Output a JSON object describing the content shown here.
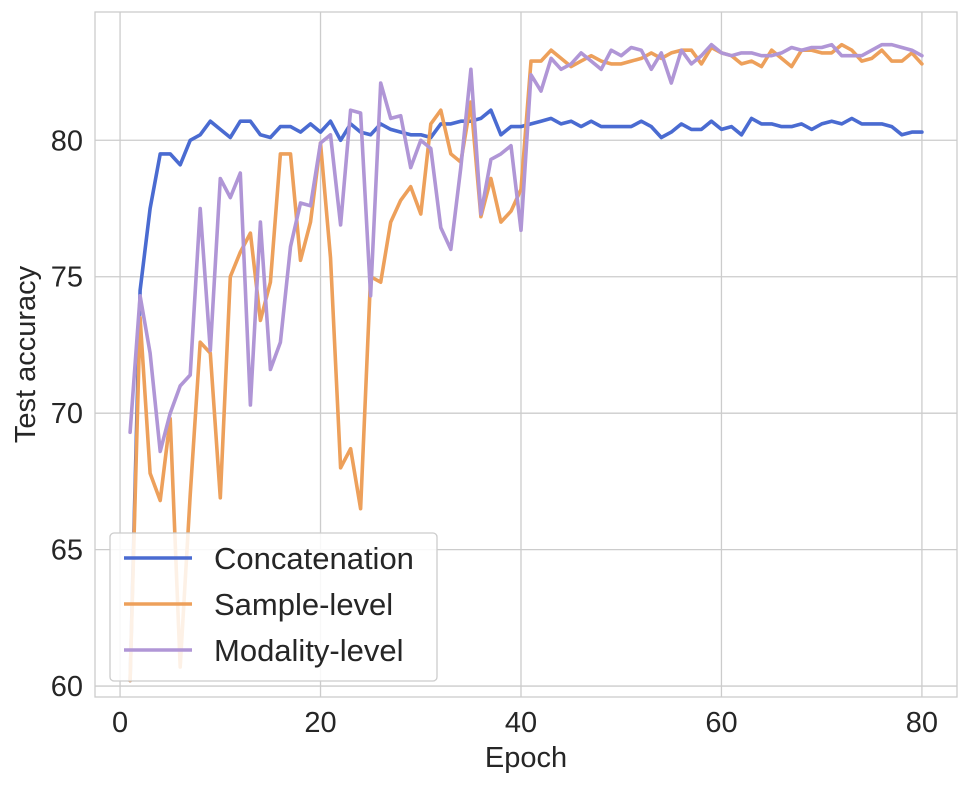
{
  "chart_data": {
    "type": "line",
    "title": "",
    "xlabel": "Epoch",
    "ylabel": "Test accuracy",
    "xlim": [
      -2.5,
      83.5
    ],
    "ylim": [
      59.6,
      84.7
    ],
    "xticks": [
      0,
      20,
      40,
      60,
      80
    ],
    "yticks": [
      60,
      65,
      70,
      75,
      80
    ],
    "xtick_labels": [
      "0",
      "20",
      "40",
      "60",
      "80"
    ],
    "ytick_labels": [
      "60",
      "65",
      "70",
      "75",
      "80"
    ],
    "grid": true,
    "legend_position": "lower-left",
    "x": [
      1,
      2,
      3,
      4,
      5,
      6,
      7,
      8,
      9,
      10,
      11,
      12,
      13,
      14,
      15,
      16,
      17,
      18,
      19,
      20,
      21,
      22,
      23,
      24,
      25,
      26,
      27,
      28,
      29,
      30,
      31,
      32,
      33,
      34,
      35,
      36,
      37,
      38,
      39,
      40,
      41,
      42,
      43,
      44,
      45,
      46,
      47,
      48,
      49,
      50,
      51,
      52,
      53,
      54,
      55,
      56,
      57,
      58,
      59,
      60,
      61,
      62,
      63,
      64,
      65,
      66,
      67,
      68,
      69,
      70,
      71,
      72,
      73,
      74,
      75,
      76,
      77,
      78,
      79,
      80
    ],
    "series": [
      {
        "name": "Concatenation",
        "color": "#4a6bd1",
        "values": [
          60.2,
          74.5,
          77.5,
          79.5,
          79.5,
          79.1,
          80.0,
          80.2,
          80.7,
          80.4,
          80.1,
          80.7,
          80.7,
          80.2,
          80.1,
          80.5,
          80.5,
          80.3,
          80.6,
          80.3,
          80.7,
          80.0,
          80.6,
          80.3,
          80.2,
          80.6,
          80.4,
          80.3,
          80.2,
          80.2,
          80.1,
          80.6,
          80.6,
          80.7,
          80.7,
          80.8,
          81.1,
          80.2,
          80.5,
          80.5,
          80.6,
          80.7,
          80.8,
          80.6,
          80.7,
          80.5,
          80.7,
          80.5,
          80.5,
          80.5,
          80.5,
          80.7,
          80.5,
          80.1,
          80.3,
          80.6,
          80.4,
          80.4,
          80.7,
          80.4,
          80.5,
          80.2,
          80.8,
          80.6,
          80.6,
          80.5,
          80.5,
          80.6,
          80.4,
          80.6,
          80.7,
          80.6,
          80.8,
          80.6,
          80.6,
          80.6,
          80.5,
          80.2,
          80.3,
          80.3
        ]
      },
      {
        "name": "Sample-level",
        "color": "#eda05b",
        "values": [
          60.2,
          73.5,
          67.8,
          66.8,
          69.8,
          60.7,
          67.0,
          72.6,
          72.2,
          66.9,
          75.0,
          75.9,
          76.6,
          73.4,
          74.8,
          79.5,
          79.5,
          75.6,
          77.0,
          79.9,
          75.7,
          68.0,
          68.7,
          66.5,
          75.0,
          74.8,
          77.0,
          77.8,
          78.3,
          77.3,
          80.6,
          81.1,
          79.5,
          79.2,
          81.4,
          77.2,
          78.6,
          77.0,
          77.4,
          78.2,
          82.9,
          82.9,
          83.3,
          83.0,
          82.7,
          82.9,
          83.1,
          82.9,
          82.8,
          82.8,
          82.9,
          83.0,
          83.2,
          83.0,
          83.2,
          83.3,
          83.3,
          82.8,
          83.4,
          83.2,
          83.1,
          82.8,
          82.9,
          82.7,
          83.3,
          83.0,
          82.7,
          83.3,
          83.3,
          83.2,
          83.2,
          83.5,
          83.3,
          82.9,
          83.0,
          83.3,
          82.9,
          82.9,
          83.2,
          82.8
        ]
      },
      {
        "name": "Modality-level",
        "color": "#b096d6",
        "values": [
          69.3,
          74.3,
          72.2,
          68.6,
          70.0,
          71.0,
          71.4,
          77.5,
          72.3,
          78.6,
          77.9,
          78.8,
          70.3,
          77.0,
          71.6,
          72.6,
          76.1,
          77.7,
          77.6,
          79.9,
          80.2,
          76.9,
          81.1,
          81.0,
          74.3,
          82.1,
          80.8,
          80.9,
          79.0,
          80.0,
          79.7,
          76.8,
          76.0,
          79.0,
          82.6,
          77.3,
          79.3,
          79.5,
          79.8,
          76.7,
          82.4,
          81.8,
          83.0,
          82.6,
          82.8,
          83.2,
          82.9,
          82.6,
          83.3,
          83.1,
          83.4,
          83.3,
          82.6,
          83.2,
          82.1,
          83.3,
          82.8,
          83.1,
          83.5,
          83.2,
          83.1,
          83.2,
          83.2,
          83.1,
          83.1,
          83.2,
          83.4,
          83.3,
          83.4,
          83.4,
          83.5,
          83.1,
          83.1,
          83.1,
          83.3,
          83.5,
          83.5,
          83.4,
          83.3,
          83.1
        ]
      }
    ]
  }
}
